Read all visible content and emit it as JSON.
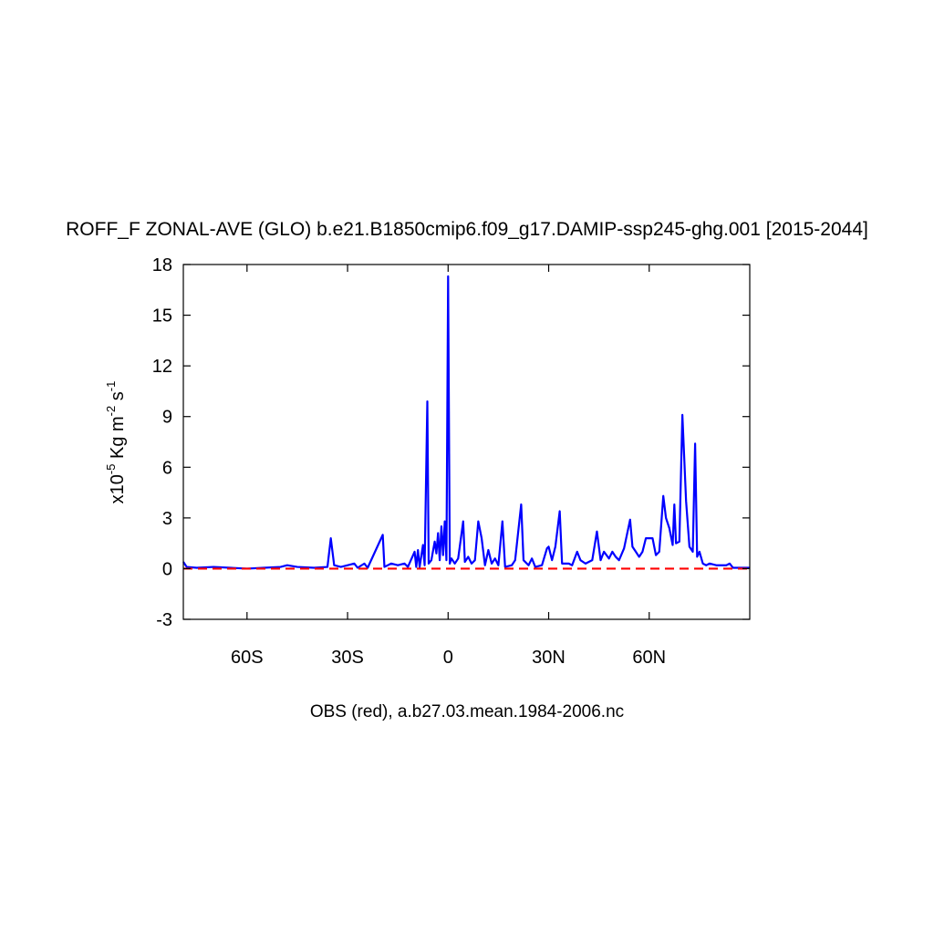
{
  "chart_data": {
    "type": "line",
    "title": "ROFF_F ZONAL-AVE (GLO) b.e21.B1850cmip6.f09_g17.DAMIP-ssp245-ghg.001 [2015-2044]",
    "xlabel": "OBS (red), a.b27.03.mean.1984-2006.nc",
    "ylabel_parts": [
      "x10",
      "-5",
      " Kg m",
      "-2",
      " s",
      "-1"
    ],
    "xlim": [
      -79,
      90
    ],
    "ylim": [
      -3,
      18
    ],
    "xticks": [
      {
        "value": -60,
        "label": "60S"
      },
      {
        "value": -30,
        "label": "30S"
      },
      0,
      {
        "value": 30,
        "label": "30N"
      },
      {
        "value": 60,
        "label": "60N"
      }
    ],
    "yticks": [
      -3,
      0,
      3,
      6,
      9,
      12,
      15,
      18
    ],
    "series": [
      {
        "color": "#0000ff",
        "dash": false,
        "x": [
          -79,
          -78,
          -75,
          -70,
          -65,
          -60,
          -55,
          -50,
          -48,
          -45,
          -40,
          -36,
          -35,
          -34,
          -32,
          -28,
          -27,
          -25,
          -24,
          -19.5,
          -19,
          -17,
          -15,
          -13,
          -12,
          -10,
          -9.5,
          -9,
          -8.5,
          -7.5,
          -7,
          -6.2,
          -5.8,
          -5,
          -4,
          -3.5,
          -3,
          -2.5,
          -2,
          -1.5,
          -1,
          -0.5,
          0,
          0.5,
          1,
          2,
          3,
          4.5,
          5,
          6,
          7,
          8,
          9,
          10,
          11,
          12,
          13,
          14,
          15,
          16.2,
          17,
          19,
          20,
          21.8,
          22.5,
          24,
          25,
          26,
          28,
          29.5,
          30,
          31,
          32,
          33.3,
          34,
          36,
          37,
          38.5,
          39.5,
          41,
          43,
          44.4,
          45.5,
          46.5,
          48,
          49,
          50,
          51,
          52.5,
          54.3,
          55,
          56,
          57,
          58,
          59,
          61,
          62,
          63,
          64.2,
          65,
          66,
          67,
          67.5,
          68,
          69,
          69.9,
          71,
          72,
          73,
          73.7,
          74.3,
          75,
          76,
          77,
          78,
          80,
          83,
          84,
          85,
          90
        ],
        "values": [
          0.4,
          0.1,
          0.05,
          0.1,
          0.05,
          0,
          0.05,
          0.1,
          0.2,
          0.1,
          0.05,
          0.1,
          1.8,
          0.2,
          0.1,
          0.3,
          0.05,
          0.3,
          0.05,
          2.0,
          0.1,
          0.3,
          0.2,
          0.3,
          0.1,
          1.0,
          0.1,
          1.1,
          0.1,
          1.4,
          0.2,
          9.9,
          0.3,
          0.5,
          1.6,
          0.9,
          2.1,
          0.5,
          2.5,
          0.8,
          2.8,
          0.5,
          17.3,
          0.3,
          0.6,
          0.3,
          0.6,
          2.8,
          0.4,
          0.7,
          0.3,
          0.5,
          2.8,
          1.8,
          0.2,
          1.1,
          0.3,
          0.6,
          0.2,
          2.8,
          0.1,
          0.2,
          0.5,
          3.8,
          0.5,
          0.2,
          0.6,
          0.1,
          0.2,
          1.2,
          1.3,
          0.5,
          1.3,
          3.4,
          0.3,
          0.3,
          0.2,
          1.0,
          0.5,
          0.3,
          0.5,
          2.2,
          0.5,
          1.0,
          0.6,
          1.0,
          0.7,
          0.5,
          1.2,
          2.9,
          1.3,
          1.0,
          0.7,
          1.0,
          1.8,
          1.8,
          0.8,
          1.0,
          4.3,
          3.0,
          2.4,
          1.4,
          3.8,
          1.5,
          1.6,
          9.1,
          4.0,
          1.3,
          1.0,
          7.4,
          0.7,
          1.0,
          0.3,
          0.2,
          0.3,
          0.2,
          0.2,
          0.3,
          0.05,
          0.05
        ]
      },
      {
        "color": "#ff0000",
        "dash": true,
        "x": [
          -79,
          90
        ],
        "values": [
          0,
          0
        ]
      }
    ]
  }
}
